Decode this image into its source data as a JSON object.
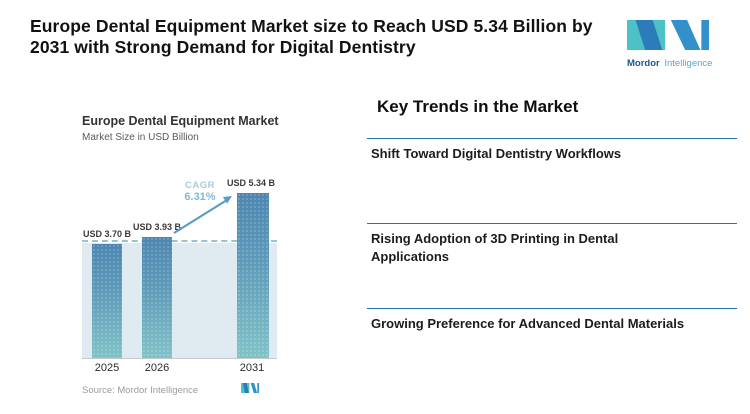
{
  "header": {
    "title_line1": "Europe Dental Equipment Market size to Reach USD 5.34 Billion by",
    "title_line2": "2031 with Strong Demand for Digital Dentistry"
  },
  "brand": {
    "mordor": "Mordor",
    "intelligence": "Intelligence",
    "colors": {
      "teal": "#4cc2c6",
      "dark_blue": "#2d7cba",
      "mid_blue": "#3390cb",
      "mordor_text": "#1d5687",
      "intelligence_text": "#55a4d6"
    }
  },
  "chart_data": {
    "type": "bar",
    "title": "Europe Dental Equipment Market",
    "subtitle": "Market Size in USD Billion",
    "categories": [
      "2025",
      "2026",
      "2031"
    ],
    "values": [
      3.7,
      3.93,
      5.34
    ],
    "value_labels": [
      "USD 3.70 B",
      "USD 3.93 B",
      "USD 5.34 B"
    ],
    "cagr": {
      "label": "CAGR",
      "value": "6.31%"
    },
    "reference_line_value": 3.7,
    "ylim": [
      0,
      5.5
    ],
    "grid": "off",
    "source": "Source: Mordor Intelligence",
    "colors": {
      "bar_top": "#4d86b1",
      "bar_bottom": "#81c3c8",
      "panel_bg": "#dfeaf1",
      "dashed_line": "#97c3d9",
      "arrow": "#5b9ac6",
      "cagr_label": "#a9cbe0",
      "cagr_value": "#86b7d7"
    }
  },
  "trends": {
    "heading": "Key Trends in the Market",
    "divider_color": "#2c74a6",
    "items": [
      {
        "label": "Shift Toward Digital Dentistry Workflows"
      },
      {
        "label": "Rising Adoption of 3D Printing in Dental Applications"
      },
      {
        "label": "Growing Preference for Advanced Dental Materials"
      }
    ]
  }
}
